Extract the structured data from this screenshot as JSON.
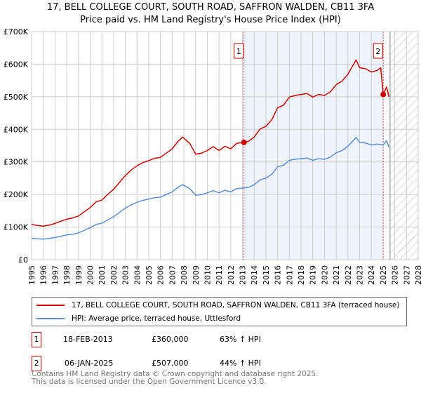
{
  "chart_data": {
    "type": "line",
    "title": "17, BELL COLLEGE COURT, SOUTH ROAD, SAFFRON WALDEN, CB11 3FA",
    "subtitle": "Price paid vs. HM Land Registry's House Price Index (HPI)",
    "xlim": [
      1995,
      2028
    ],
    "ylim": [
      0,
      700000
    ],
    "yticks": [
      0,
      100000,
      200000,
      300000,
      400000,
      500000,
      600000,
      700000
    ],
    "ytick_labels": [
      "£0",
      "£100K",
      "£200K",
      "£300K",
      "£400K",
      "£500K",
      "£600K",
      "£700K"
    ],
    "xticks": [
      "1995",
      "1996",
      "1997",
      "1998",
      "1999",
      "2000",
      "2001",
      "2002",
      "2003",
      "2004",
      "2005",
      "2006",
      "2007",
      "2008",
      "2009",
      "2010",
      "2011",
      "2012",
      "2013",
      "2014",
      "2015",
      "2016",
      "2017",
      "2018",
      "2019",
      "2020",
      "2021",
      "2022",
      "2023",
      "2024",
      "2025",
      "2026",
      "2027",
      "2028"
    ],
    "grid": true,
    "shaded_range": [
      2013.13,
      2025.02
    ],
    "forecast_hatch_from": 2025.6,
    "colors": {
      "property": "#cc0000",
      "hpi": "#5b8fd4",
      "shade": "#eef3fc"
    },
    "series": [
      {
        "name": "17, BELL COLLEGE COURT, SOUTH ROAD, SAFFRON WALDEN, CB11 3FA (terraced house)",
        "color": "#cc0000",
        "x": [
          1995,
          1995.5,
          1996,
          1996.5,
          1997,
          1997.5,
          1998,
          1998.5,
          1999,
          1999.5,
          2000,
          2000.5,
          2001,
          2001.5,
          2002,
          2002.5,
          2003,
          2003.5,
          2004,
          2004.5,
          2005,
          2005.5,
          2006,
          2006.5,
          2007,
          2007.5,
          2007.9,
          2008.5,
          2009,
          2009.5,
          2010,
          2010.5,
          2011,
          2011.5,
          2012,
          2012.5,
          2013.13,
          2013.5,
          2014,
          2014.5,
          2015,
          2015.5,
          2016,
          2016.5,
          2017,
          2017.5,
          2018,
          2018.5,
          2019,
          2019.5,
          2020,
          2020.5,
          2021,
          2021.5,
          2022,
          2022.7,
          2023,
          2023.5,
          2024,
          2024.5,
          2024.8,
          2025.02,
          2025.3,
          2025.5
        ],
        "y": [
          108,
          105,
          103,
          106,
          111,
          118,
          124,
          128,
          134,
          147,
          160,
          177,
          183,
          200,
          216,
          237,
          258,
          275,
          288,
          298,
          304,
          311,
          314,
          327,
          340,
          363,
          376,
          357,
          324,
          327,
          335,
          347,
          335,
          348,
          340,
          357,
          360,
          363,
          376,
          401,
          409,
          429,
          466,
          474,
          499,
          504,
          507,
          510,
          499,
          507,
          504,
          515,
          537,
          548,
          569,
          613,
          589,
          586,
          576,
          581,
          589,
          507,
          530,
          500
        ]
      },
      {
        "name": "HPI: Average price, terraced house, Uttlesford",
        "color": "#5b8fd4",
        "x": [
          1995,
          1995.5,
          1996,
          1996.5,
          1997,
          1997.5,
          1998,
          1998.5,
          1999,
          1999.5,
          2000,
          2000.5,
          2001,
          2001.5,
          2002,
          2002.5,
          2003,
          2003.5,
          2004,
          2004.5,
          2005,
          2005.5,
          2006,
          2006.5,
          2007,
          2007.5,
          2007.9,
          2008.5,
          2009,
          2009.5,
          2010,
          2010.5,
          2011,
          2011.5,
          2012,
          2012.5,
          2013.13,
          2013.5,
          2014,
          2014.5,
          2015,
          2015.5,
          2016,
          2016.5,
          2017,
          2017.5,
          2018,
          2018.5,
          2019,
          2019.5,
          2020,
          2020.5,
          2021,
          2021.5,
          2022,
          2022.7,
          2023,
          2023.5,
          2024,
          2024.5,
          2025.02,
          2025.3,
          2025.5
        ],
        "y": [
          66,
          64,
          63,
          65,
          68,
          72,
          76,
          78,
          82,
          90,
          98,
          108,
          112,
          122,
          132,
          145,
          158,
          168,
          176,
          182,
          186,
          190,
          192,
          200,
          208,
          222,
          230,
          218,
          198,
          200,
          205,
          212,
          205,
          213,
          208,
          218,
          220,
          222,
          230,
          245,
          250,
          262,
          285,
          290,
          305,
          308,
          310,
          312,
          305,
          310,
          308,
          315,
          328,
          335,
          348,
          375,
          360,
          358,
          352,
          355,
          352,
          365,
          345
        ]
      }
    ],
    "y_units_multiplier": 1000,
    "annotations": [
      {
        "label": "1",
        "x": 2013.13,
        "y": 360000
      },
      {
        "label": "2",
        "x": 2025.02,
        "y": 507000
      }
    ]
  },
  "legend": {
    "property": "17, BELL COLLEGE COURT, SOUTH ROAD, SAFFRON WALDEN, CB11 3FA (terraced house)",
    "hpi": "HPI: Average price, terraced house, Uttlesford"
  },
  "sales": [
    {
      "num": "1",
      "date": "18-FEB-2013",
      "price": "£360,000",
      "hpi": "63% ↑ HPI"
    },
    {
      "num": "2",
      "date": "06-JAN-2025",
      "price": "£507,000",
      "hpi": "44% ↑ HPI"
    }
  ],
  "footer": {
    "line1": "Contains HM Land Registry data © Crown copyright and database right 2025.",
    "line2": "This data is licensed under the Open Government Licence v3.0."
  }
}
